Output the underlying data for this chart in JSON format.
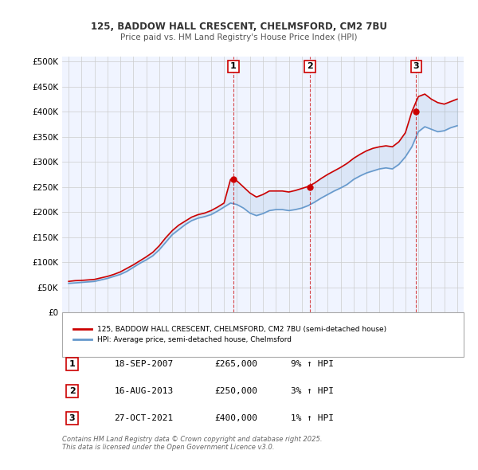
{
  "title1": "125, BADDOW HALL CRESCENT, CHELMSFORD, CM2 7BU",
  "title2": "Price paid vs. HM Land Registry's House Price Index (HPI)",
  "ylabel_ticks": [
    "£0",
    "£50K",
    "£100K",
    "£150K",
    "£200K",
    "£250K",
    "£300K",
    "£350K",
    "£400K",
    "£450K",
    "£500K"
  ],
  "ytick_vals": [
    0,
    50000,
    100000,
    150000,
    200000,
    250000,
    300000,
    350000,
    400000,
    450000,
    500000
  ],
  "xlim": [
    1994.5,
    2025.5
  ],
  "ylim": [
    0,
    510000
  ],
  "bg_color": "#f0f4ff",
  "plot_bg": "#f0f4ff",
  "grid_color": "#cccccc",
  "red_color": "#cc0000",
  "blue_color": "#6699cc",
  "transaction_dates": [
    2007.72,
    2013.62,
    2021.82
  ],
  "transaction_prices": [
    265000,
    250000,
    400000
  ],
  "transaction_labels": [
    "1",
    "2",
    "3"
  ],
  "legend_line1": "125, BADDOW HALL CRESCENT, CHELMSFORD, CM2 7BU (semi-detached house)",
  "legend_line2": "HPI: Average price, semi-detached house, Chelmsford",
  "table_data": [
    [
      "1",
      "18-SEP-2007",
      "£265,000",
      "9% ↑ HPI"
    ],
    [
      "2",
      "16-AUG-2013",
      "£250,000",
      "3% ↑ HPI"
    ],
    [
      "3",
      "27-OCT-2021",
      "£400,000",
      "1% ↑ HPI"
    ]
  ],
  "footer": "Contains HM Land Registry data © Crown copyright and database right 2025.\nThis data is licensed under the Open Government Licence v3.0.",
  "hpi_years": [
    1995,
    1995.5,
    1996,
    1996.5,
    1997,
    1997.5,
    1998,
    1998.5,
    1999,
    1999.5,
    2000,
    2000.5,
    2001,
    2001.5,
    2002,
    2002.5,
    2003,
    2003.5,
    2004,
    2004.5,
    2005,
    2005.5,
    2006,
    2006.5,
    2007,
    2007.5,
    2008,
    2008.5,
    2009,
    2009.5,
    2010,
    2010.5,
    2011,
    2011.5,
    2012,
    2012.5,
    2013,
    2013.5,
    2014,
    2014.5,
    2015,
    2015.5,
    2016,
    2016.5,
    2017,
    2017.5,
    2018,
    2018.5,
    2019,
    2019.5,
    2020,
    2020.5,
    2021,
    2021.5,
    2022,
    2022.5,
    2023,
    2023.5,
    2024,
    2024.5,
    2025
  ],
  "hpi_values": [
    58000,
    59000,
    60000,
    61000,
    62000,
    65000,
    68000,
    72000,
    76000,
    82000,
    90000,
    98000,
    105000,
    113000,
    125000,
    140000,
    155000,
    165000,
    175000,
    183000,
    188000,
    191000,
    195000,
    202000,
    210000,
    218000,
    215000,
    208000,
    198000,
    193000,
    197000,
    203000,
    205000,
    205000,
    203000,
    205000,
    208000,
    213000,
    220000,
    228000,
    235000,
    242000,
    248000,
    255000,
    265000,
    272000,
    278000,
    282000,
    286000,
    288000,
    286000,
    295000,
    310000,
    330000,
    360000,
    370000,
    365000,
    360000,
    362000,
    368000,
    372000
  ],
  "price_years": [
    1995,
    1995.5,
    1996,
    1996.5,
    1997,
    1997.5,
    1998,
    1998.5,
    1999,
    1999.5,
    2000,
    2000.5,
    2001,
    2001.5,
    2002,
    2002.5,
    2003,
    2003.5,
    2004,
    2004.5,
    2005,
    2005.5,
    2006,
    2006.5,
    2007,
    2007.5,
    2008,
    2008.5,
    2009,
    2009.5,
    2010,
    2010.5,
    2011,
    2011.5,
    2012,
    2012.5,
    2013,
    2013.5,
    2014,
    2014.5,
    2015,
    2015.5,
    2016,
    2016.5,
    2017,
    2017.5,
    2018,
    2018.5,
    2019,
    2019.5,
    2020,
    2020.5,
    2021,
    2021.5,
    2022,
    2022.5,
    2023,
    2023.5,
    2024,
    2024.5,
    2025
  ],
  "price_values": [
    62000,
    63500,
    64000,
    65000,
    66000,
    69000,
    72000,
    76000,
    81000,
    88000,
    95000,
    103000,
    111000,
    120000,
    133000,
    149000,
    163000,
    174000,
    182000,
    190000,
    195000,
    198000,
    203000,
    210000,
    218000,
    265000,
    262000,
    250000,
    238000,
    230000,
    235000,
    242000,
    242000,
    242000,
    240000,
    243000,
    247000,
    251000,
    258000,
    267000,
    275000,
    282000,
    289000,
    297000,
    307000,
    315000,
    322000,
    327000,
    330000,
    332000,
    330000,
    340000,
    358000,
    400000,
    430000,
    435000,
    425000,
    418000,
    415000,
    420000,
    425000
  ]
}
